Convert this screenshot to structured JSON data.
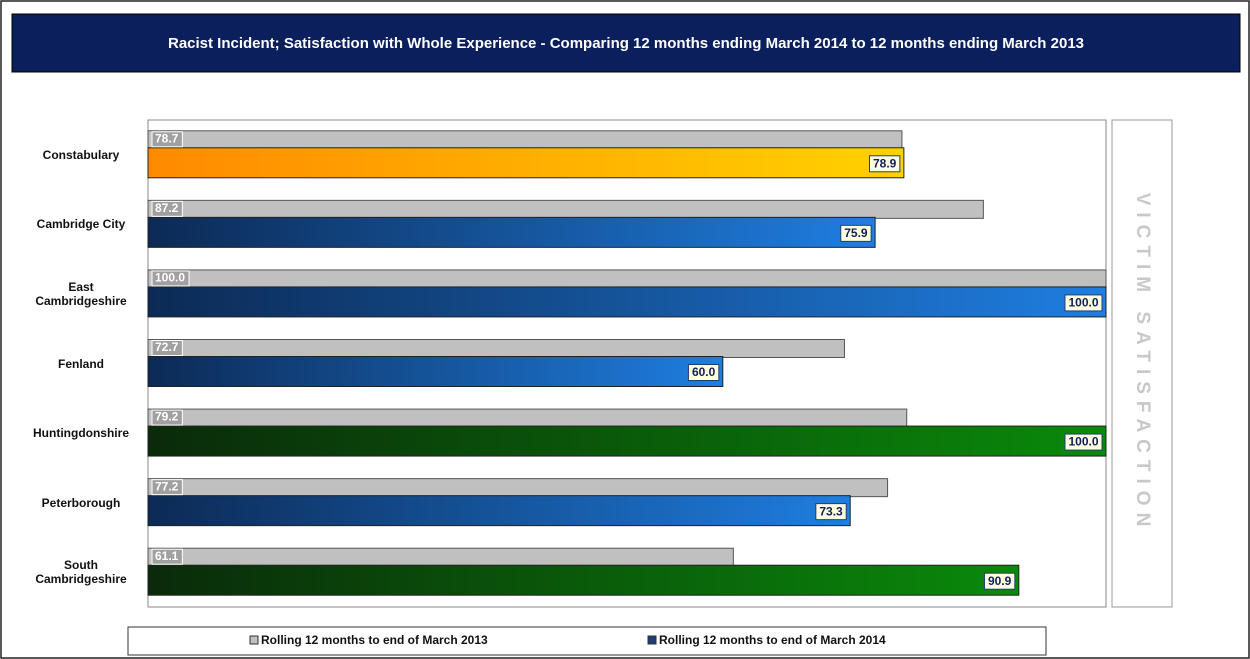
{
  "chart_data": {
    "type": "bar",
    "orientation": "horizontal",
    "title": "Racist Incident;  Satisfaction with Whole Experience - Comparing 12 months ending March 2014 to 12 months ending March 2013",
    "side_label": "VICTIM SATISFACTION",
    "categories": [
      "Constabulary",
      "Cambridge City",
      "East Cambridgeshire",
      "Fenland",
      "Huntingdonshire",
      "Peterborough",
      "South Cambridgeshire"
    ],
    "xlim": [
      0,
      100
    ],
    "series": [
      {
        "name": "Rolling 12 months to end of March 2013",
        "color": "#c0c0c0",
        "values": [
          78.7,
          87.2,
          100,
          72.7,
          79.2,
          77.2,
          61.1
        ],
        "value_labels": [
          "78.7",
          "87.2",
          "100.0",
          "72.7",
          "79.2",
          "77.2",
          "61.1"
        ]
      },
      {
        "name": "Rolling 12 months to end of March 2014",
        "color": "#1f3d7a",
        "values": [
          78.9,
          75.9,
          100,
          60,
          100,
          73.3,
          90.9
        ],
        "value_labels": [
          "78.9",
          "75.9",
          "100.0",
          "60.0",
          "100.0",
          "73.3",
          "90.9"
        ],
        "colors": [
          [
            "#ff8a00",
            "#ffd200"
          ],
          [
            "#0c2a55",
            "#1f7ee0"
          ],
          [
            "#0c2a55",
            "#1f7ee0"
          ],
          [
            "#0c2a55",
            "#1f7ee0"
          ],
          [
            "#0a2a0a",
            "#0a8a0a"
          ],
          [
            "#0c2a55",
            "#1f7ee0"
          ],
          [
            "#0a2a0a",
            "#0a8a0a"
          ]
        ]
      }
    ],
    "legend": "bottom"
  }
}
